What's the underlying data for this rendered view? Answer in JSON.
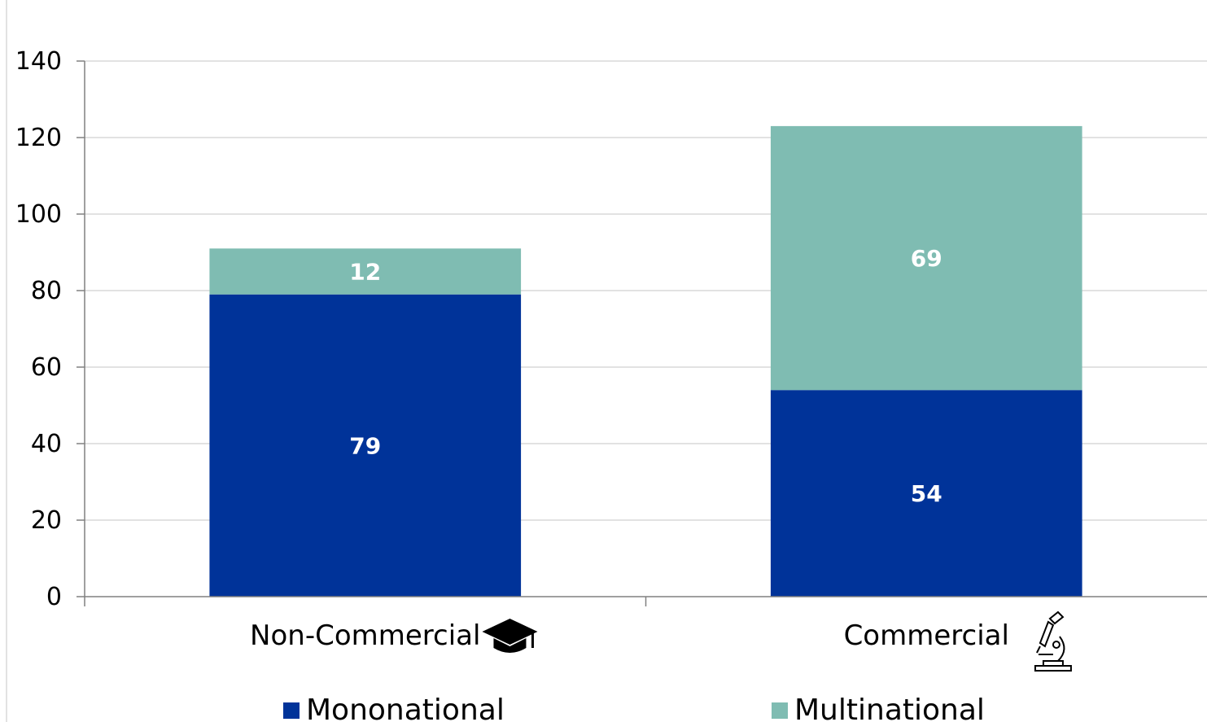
{
  "chart_data": {
    "type": "bar",
    "stacked": true,
    "categories": [
      "Non-Commercial",
      "Commercial"
    ],
    "category_icons": [
      "graduation-cap-icon",
      "microscope-icon"
    ],
    "series": [
      {
        "name": "Mononational",
        "values": [
          79,
          54
        ],
        "color": "#003399"
      },
      {
        "name": "Multinational",
        "values": [
          12,
          69
        ],
        "color": "#7fbcb2"
      }
    ],
    "ylim": [
      0,
      140
    ],
    "yticks": [
      0,
      20,
      40,
      60,
      80,
      100,
      120,
      140
    ],
    "grid": true,
    "legend": "bottom",
    "title": "",
    "xlabel": "",
    "ylabel": ""
  }
}
